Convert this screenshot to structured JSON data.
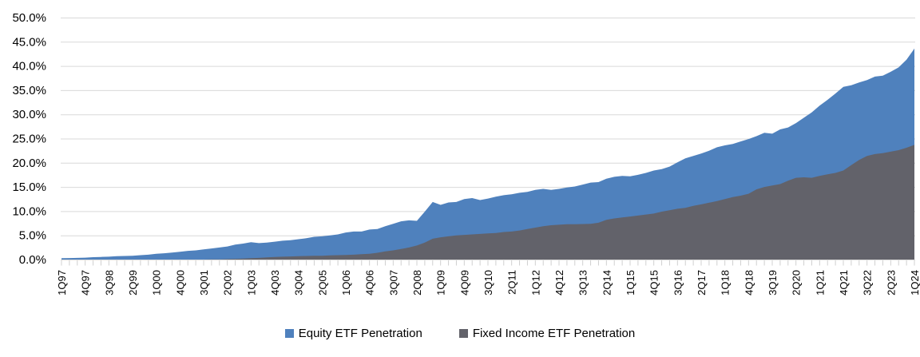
{
  "chart_data": {
    "type": "area",
    "title": "",
    "stacking": "overlaid",
    "grid": true,
    "legend_position": "bottom-center",
    "background": "#FFFFFF",
    "gridline_color": "#D9D9D9",
    "tick_color": "#D0D0D0",
    "ylim": [
      0,
      50
    ],
    "y_step": 5,
    "y_tick_labels": [
      "0.0%",
      "5.0%",
      "10.0%",
      "15.0%",
      "20.0%",
      "25.0%",
      "30.0%",
      "35.0%",
      "40.0%",
      "45.0%",
      "50.0%"
    ],
    "x_label_every_n_points": 3,
    "x_tick_labels": [
      "1Q97",
      "4Q97",
      "3Q98",
      "2Q99",
      "1Q00",
      "4Q00",
      "3Q01",
      "2Q02",
      "1Q03",
      "4Q03",
      "3Q04",
      "2Q05",
      "1Q06",
      "4Q06",
      "3Q07",
      "2Q08",
      "1Q09",
      "4Q09",
      "3Q10",
      "2Q11",
      "1Q12",
      "4Q12",
      "3Q13",
      "2Q14",
      "1Q15",
      "4Q15",
      "3Q16",
      "2Q17",
      "1Q18",
      "4Q18",
      "3Q19",
      "2Q20",
      "1Q21",
      "4Q21",
      "3Q22",
      "2Q23",
      "1Q24"
    ],
    "series": [
      {
        "name": "Equity ETF Penetration",
        "color": "#4F81BD",
        "values": [
          0.3,
          0.32,
          0.35,
          0.4,
          0.5,
          0.55,
          0.6,
          0.7,
          0.75,
          0.8,
          0.9,
          1.0,
          1.2,
          1.3,
          1.45,
          1.6,
          1.8,
          1.9,
          2.1,
          2.3,
          2.5,
          2.7,
          3.1,
          3.3,
          3.6,
          3.4,
          3.5,
          3.7,
          3.9,
          4.0,
          4.2,
          4.4,
          4.7,
          4.8,
          5.0,
          5.2,
          5.6,
          5.8,
          5.8,
          6.2,
          6.3,
          6.9,
          7.4,
          7.9,
          8.1,
          8.0,
          9.9,
          11.9,
          11.3,
          11.8,
          11.9,
          12.5,
          12.7,
          12.3,
          12.6,
          13.0,
          13.3,
          13.5,
          13.8,
          14.0,
          14.4,
          14.6,
          14.4,
          14.6,
          14.9,
          15.1,
          15.5,
          15.9,
          16.0,
          16.7,
          17.1,
          17.3,
          17.2,
          17.5,
          17.9,
          18.4,
          18.7,
          19.2,
          20.1,
          20.9,
          21.4,
          21.9,
          22.5,
          23.2,
          23.6,
          23.9,
          24.4,
          24.9,
          25.5,
          26.2,
          26.0,
          26.9,
          27.3,
          28.2,
          29.3,
          30.4,
          31.8,
          33.0,
          34.3,
          35.7,
          36.0,
          36.6,
          37.1,
          37.8,
          38.0,
          38.8,
          39.7,
          41.3,
          43.6
        ]
      },
      {
        "name": "Fixed Income ETF Penetration",
        "color": "#62626A",
        "values": [
          0,
          0,
          0,
          0,
          0,
          0,
          0,
          0,
          0,
          0,
          0,
          0,
          0,
          0,
          0,
          0,
          0,
          0,
          0,
          0.05,
          0.05,
          0.1,
          0.15,
          0.2,
          0.3,
          0.35,
          0.45,
          0.55,
          0.6,
          0.65,
          0.7,
          0.75,
          0.8,
          0.8,
          0.85,
          0.9,
          0.95,
          1.0,
          1.1,
          1.2,
          1.4,
          1.7,
          1.9,
          2.2,
          2.5,
          2.9,
          3.5,
          4.3,
          4.6,
          4.8,
          5.0,
          5.1,
          5.2,
          5.3,
          5.4,
          5.5,
          5.7,
          5.8,
          6.0,
          6.3,
          6.6,
          6.9,
          7.1,
          7.2,
          7.3,
          7.3,
          7.35,
          7.4,
          7.6,
          8.2,
          8.5,
          8.7,
          8.9,
          9.1,
          9.3,
          9.5,
          9.9,
          10.2,
          10.5,
          10.7,
          11.1,
          11.4,
          11.75,
          12.1,
          12.5,
          12.9,
          13.2,
          13.6,
          14.5,
          15.0,
          15.3,
          15.6,
          16.3,
          16.9,
          17.0,
          16.9,
          17.3,
          17.6,
          17.9,
          18.4,
          19.5,
          20.6,
          21.4,
          21.8,
          22.0,
          22.3,
          22.6,
          23.1,
          23.7
        ]
      }
    ]
  }
}
